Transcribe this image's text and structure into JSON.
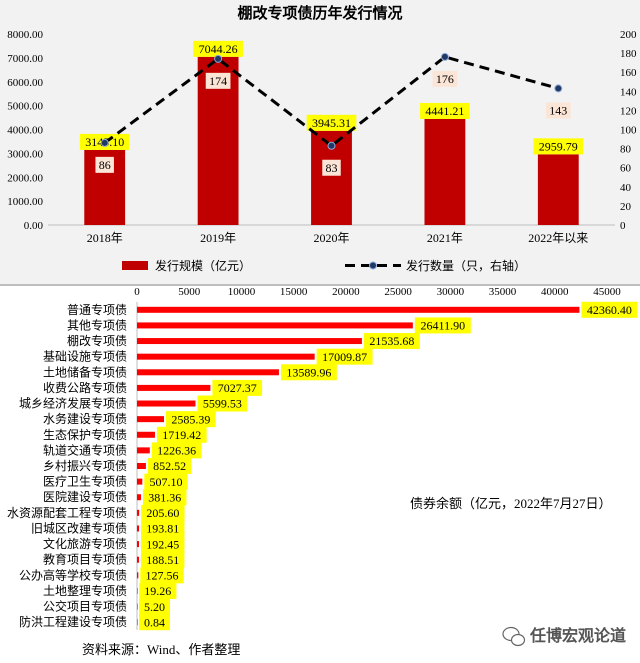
{
  "chart_data": [
    {
      "type": "bar",
      "title": "棚改专项债历年发行情况",
      "categories": [
        "2018年",
        "2019年",
        "2020年",
        "2021年",
        "2022年以来"
      ],
      "series": [
        {
          "name": "发行规模（亿元）",
          "type": "bar",
          "axis": "left",
          "color": "#c00000",
          "values": [
            3145.1,
            7044.26,
            3945.31,
            4441.21,
            2959.79
          ],
          "labels": [
            "3145.10",
            "7044.26",
            "3945.31",
            "4441.21",
            "2959.79"
          ]
        },
        {
          "name": "发行数量（只，右轴）",
          "type": "line",
          "axis": "right",
          "color": "#000000",
          "values": [
            86,
            174,
            83,
            176,
            143
          ],
          "labels": [
            "86",
            "174",
            "83",
            "176",
            "143"
          ]
        }
      ],
      "y_left": {
        "range": [
          0,
          8000
        ],
        "ticks": [
          "0.00",
          "1000.00",
          "2000.00",
          "3000.00",
          "4000.00",
          "5000.00",
          "6000.00",
          "7000.00",
          "8000.00"
        ]
      },
      "y_right": {
        "range": [
          0,
          200
        ],
        "ticks": [
          "0",
          "20",
          "40",
          "60",
          "80",
          "100",
          "120",
          "140",
          "160",
          "180",
          "200"
        ]
      },
      "grid": false,
      "legend": "bottom"
    },
    {
      "type": "bar",
      "orientation": "horizontal",
      "annotation": "债券余额（亿元，2022年7月27日）",
      "categories": [
        "普通专项债",
        "其他专项债",
        "棚改专项债",
        "基础设施专项债",
        "土地储备专项债",
        "收费公路专项债",
        "城乡经济发展专项债",
        "水务建设专项债",
        "生态保护专项债",
        "轨道交通专项债",
        "乡村振兴专项债",
        "医疗卫生专项债",
        "医院建设专项债",
        "水资源配套工程专项债",
        "旧城区改建专项债",
        "文化旅游专项债",
        "教育项目专项债",
        "公办高等学校专项债",
        "土地整理专项债",
        "公交项目专项债",
        "防洪工程建设专项债"
      ],
      "values": [
        42360.4,
        26411.9,
        21535.68,
        17009.87,
        13589.96,
        7027.37,
        5599.53,
        2585.39,
        1719.42,
        1226.36,
        852.52,
        507.1,
        381.36,
        205.6,
        193.81,
        192.45,
        188.51,
        127.56,
        19.26,
        5.2,
        0.84
      ],
      "labels": [
        "42360.40",
        "26411.90",
        "21535.68",
        "17009.87",
        "13589.96",
        "7027.37",
        "5599.53",
        "2585.39",
        "1719.42",
        "1226.36",
        "852.52",
        "507.10",
        "381.36",
        "205.60",
        "193.81",
        "192.45",
        "188.51",
        "127.56",
        "19.26",
        "5.20",
        "0.84"
      ],
      "x_range": [
        0,
        45000
      ],
      "x_ticks": [
        "0",
        "5000",
        "10000",
        "15000",
        "20000",
        "25000",
        "30000",
        "35000",
        "40000",
        "45000"
      ],
      "color": "#ff0000",
      "grid": false
    }
  ],
  "source": "资料来源：Wind、作者整理",
  "watermark": "任博宏观论道",
  "colors": {
    "bar_dark_red": "#c00000",
    "bar_red": "#ff0000",
    "label_highlight": "#ffff00",
    "line_label_bg": "#fbe5d6",
    "top_panel_bg": "#f2f2f2"
  }
}
